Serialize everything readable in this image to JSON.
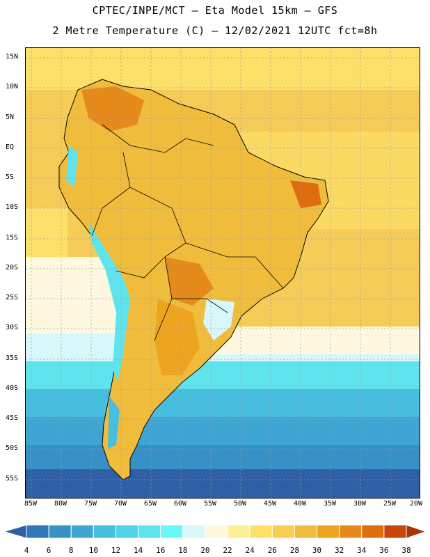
{
  "title": {
    "line1": "CPTEC/INPE/MCT —  Eta Model 15km — GFS",
    "line2": "2 Metre Temperature (C) — 12/02/2021 12UTC fct=8h"
  },
  "lat_labels": [
    "15N",
    "10N",
    "5N",
    "EQ",
    "5S",
    "10S",
    "15S",
    "20S",
    "25S",
    "30S",
    "35S",
    "40S",
    "45S",
    "50S",
    "55S"
  ],
  "lon_labels": [
    "85W",
    "80W",
    "75W",
    "70W",
    "65W",
    "60W",
    "55W",
    "50W",
    "45W",
    "40W",
    "35W",
    "30W",
    "25W",
    "20W"
  ],
  "colorbar": {
    "labels": [
      "4",
      "6",
      "8",
      "10",
      "12",
      "14",
      "16",
      "18",
      "20",
      "22",
      "24",
      "26",
      "28",
      "30",
      "32",
      "34",
      "36",
      "38"
    ],
    "colors": [
      "#2f5fa6",
      "#2f78b8",
      "#3790c6",
      "#3fa6d4",
      "#48bedf",
      "#52d2e6",
      "#5fe4ee",
      "#6cf6f8",
      "#d7f7fb",
      "#fff8e1",
      "#ffef93",
      "#fde06a",
      "#f6ce52",
      "#f0bc3c",
      "#eda520",
      "#e68a1c",
      "#de6d10",
      "#c9460a",
      "#a83307"
    ]
  },
  "colors": {
    "land_hot": "#e68a1c",
    "land_warm": "#f0bc3c",
    "ocean_warm": "#f4cc57",
    "ocean_mid": "#fde06a",
    "ocean_cool": "#52d2e6",
    "ocean_cold": "#2f5fa6",
    "andes": "#5fe4ee"
  }
}
